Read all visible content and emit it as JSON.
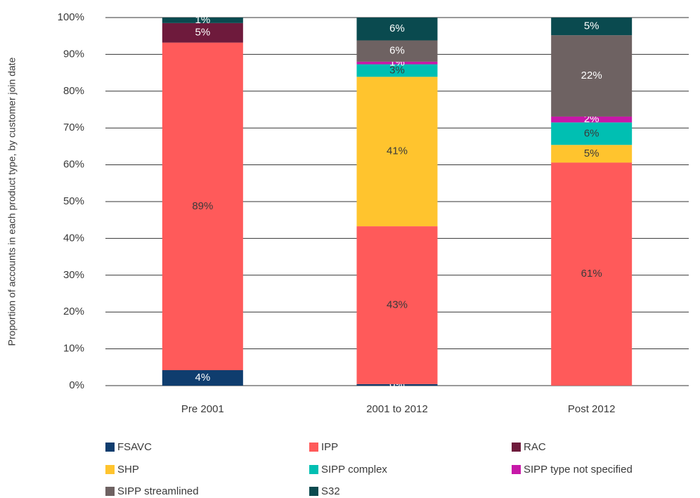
{
  "chart_data": {
    "type": "stacked-bar",
    "y_label": "Proportion of accounts in each product type, by customer join date",
    "categories": [
      "Pre 2001",
      "2001 to 2012",
      "Post 2012"
    ],
    "ylim": [
      0,
      100
    ],
    "yticks": [
      {
        "value": 0,
        "label": "0%"
      },
      {
        "value": 10,
        "label": "10%"
      },
      {
        "value": 20,
        "label": "20%"
      },
      {
        "value": 30,
        "label": "30%"
      },
      {
        "value": 40,
        "label": "40%"
      },
      {
        "value": 50,
        "label": "50%"
      },
      {
        "value": 60,
        "label": "60%"
      },
      {
        "value": 70,
        "label": "70%"
      },
      {
        "value": 80,
        "label": "80%"
      },
      {
        "value": 90,
        "label": "90%"
      },
      {
        "value": 100,
        "label": "100%"
      }
    ],
    "grid": true,
    "legend": "bottom",
    "series": [
      {
        "name": "FSAVC",
        "color": "#0f3d6e",
        "values": [
          4.2,
          0.4,
          0
        ],
        "value_labels": [
          "4%",
          "0%",
          null
        ]
      },
      {
        "name": "IPP",
        "color": "#ff5a5a",
        "values": [
          89.0,
          42.9,
          60.6
        ],
        "value_labels": [
          "89%",
          "43%",
          "61%"
        ]
      },
      {
        "name": "RAC",
        "color": "#6e1a3c",
        "values": [
          5.3,
          0,
          0
        ],
        "value_labels": [
          "5%",
          null,
          null
        ]
      },
      {
        "name": "SHP",
        "color": "#ffc42e",
        "values": [
          0,
          40.6,
          4.8
        ],
        "value_labels": [
          null,
          "41%",
          "5%"
        ]
      },
      {
        "name": "SIPP complex",
        "color": "#00bfb2",
        "values": [
          0,
          3.4,
          6.1
        ],
        "value_labels": [
          null,
          "3%",
          "6%"
        ]
      },
      {
        "name": "SIPP type not specified",
        "color": "#c718a8",
        "values": [
          0,
          0.7,
          1.6
        ],
        "value_labels": [
          null,
          "1%",
          "2%"
        ]
      },
      {
        "name": "SIPP streamlined",
        "color": "#6e6262",
        "values": [
          0,
          5.8,
          22.1
        ],
        "value_labels": [
          null,
          "6%",
          "22%"
        ]
      },
      {
        "name": "S32",
        "color": "#0a4a4f",
        "values": [
          1.5,
          6.2,
          4.8
        ],
        "value_labels": [
          "1%",
          "6%",
          "5%"
        ]
      }
    ]
  }
}
